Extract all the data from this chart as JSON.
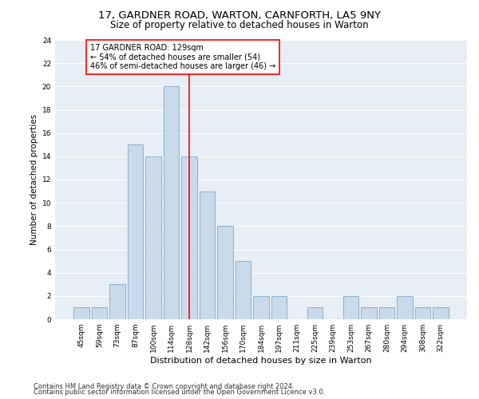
{
  "title": "17, GARDNER ROAD, WARTON, CARNFORTH, LA5 9NY",
  "subtitle": "Size of property relative to detached houses in Warton",
  "xlabel": "Distribution of detached houses by size in Warton",
  "ylabel": "Number of detached properties",
  "categories": [
    "45sqm",
    "59sqm",
    "73sqm",
    "87sqm",
    "100sqm",
    "114sqm",
    "128sqm",
    "142sqm",
    "156sqm",
    "170sqm",
    "184sqm",
    "197sqm",
    "211sqm",
    "225sqm",
    "239sqm",
    "253sqm",
    "267sqm",
    "280sqm",
    "294sqm",
    "308sqm",
    "322sqm"
  ],
  "values": [
    1,
    1,
    3,
    15,
    14,
    20,
    14,
    11,
    8,
    5,
    2,
    2,
    0,
    1,
    0,
    2,
    1,
    1,
    2,
    1,
    1
  ],
  "bar_color": "#c9daea",
  "bar_edgecolor": "#7aaac8",
  "subject_bar_index": 6,
  "subject_line_color": "red",
  "annotation_text": "17 GARDNER ROAD: 129sqm\n← 54% of detached houses are smaller (54)\n46% of semi-detached houses are larger (46) →",
  "annotation_box_color": "white",
  "annotation_box_edgecolor": "red",
  "ylim": [
    0,
    24
  ],
  "yticks": [
    0,
    2,
    4,
    6,
    8,
    10,
    12,
    14,
    16,
    18,
    20,
    22,
    24
  ],
  "footer_line1": "Contains HM Land Registry data © Crown copyright and database right 2024.",
  "footer_line2": "Contains public sector information licensed under the Open Government Licence v3.0.",
  "plot_bg_color": "#e8eef5",
  "fig_bg_color": "#ffffff",
  "grid_color": "#ffffff",
  "title_fontsize": 9.5,
  "subtitle_fontsize": 8.5,
  "xlabel_fontsize": 8,
  "ylabel_fontsize": 7.5,
  "tick_fontsize": 6.5,
  "annotation_fontsize": 7,
  "footer_fontsize": 6
}
